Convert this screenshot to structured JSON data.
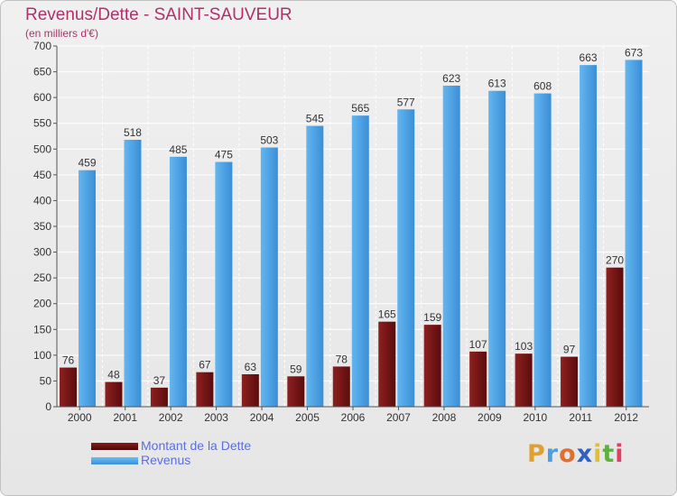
{
  "header": {
    "title": "Revenus/Dette - SAINT-SAUVEUR",
    "subtitle": "(en milliers d'€)"
  },
  "chart_data": {
    "type": "bar",
    "title": "Revenus/Dette - SAINT-SAUVEUR",
    "ylabel": "(en milliers d'€)",
    "xlabel": "",
    "categories": [
      "2000",
      "2001",
      "2002",
      "2003",
      "2004",
      "2005",
      "2006",
      "2007",
      "2008",
      "2009",
      "2010",
      "2011",
      "2012"
    ],
    "ylim": [
      0,
      700
    ],
    "yticks": [
      0,
      50,
      100,
      150,
      200,
      250,
      300,
      350,
      400,
      450,
      500,
      550,
      600,
      650,
      700
    ],
    "grid": true,
    "series": [
      {
        "name": "Montant de la Dette",
        "color": "#7a1b1b",
        "values": [
          76,
          48,
          37,
          67,
          63,
          59,
          78,
          165,
          159,
          107,
          103,
          97,
          270
        ]
      },
      {
        "name": "Revenus",
        "color": "#4a9fe0",
        "values": [
          459,
          518,
          485,
          475,
          503,
          545,
          565,
          577,
          623,
          613,
          608,
          663,
          673
        ]
      }
    ],
    "legend_position": "bottom-left"
  },
  "legend": {
    "items": [
      {
        "label": "Montant de la Dette",
        "color": "#6b0f0f"
      },
      {
        "label": "Revenus",
        "color": "#4a9fe0"
      }
    ]
  },
  "logo": {
    "letters": [
      "P",
      "r",
      "o",
      "x",
      "i",
      "t",
      "i"
    ],
    "colors": [
      "#e0a030",
      "#4aa0e0",
      "#e07030",
      "#3060c0",
      "#e0c030",
      "#60b040",
      "#e04060"
    ]
  }
}
